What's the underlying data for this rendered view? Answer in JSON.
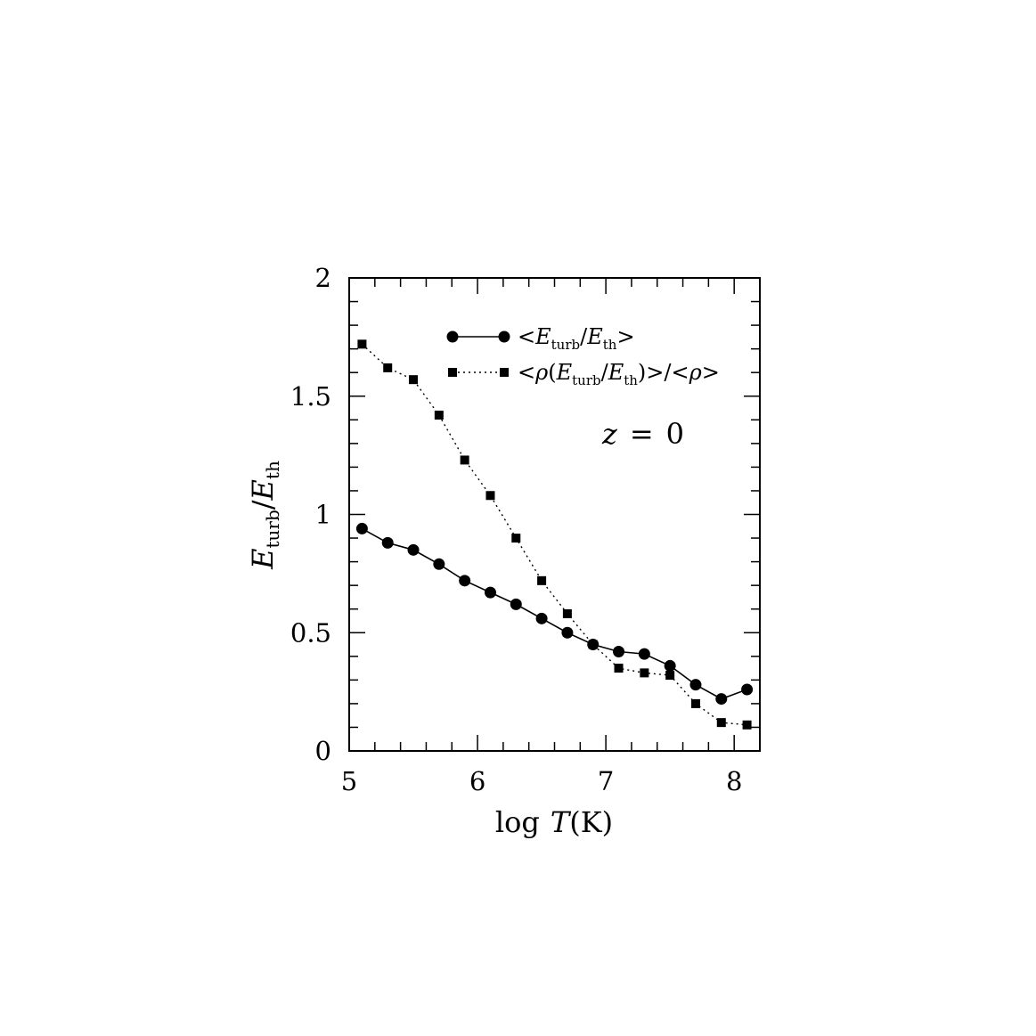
{
  "chart_data": {
    "type": "line",
    "xlabel": "log T(K)",
    "ylabel": "E_turb/E_th",
    "xlim": [
      5,
      8.2
    ],
    "ylim": [
      0,
      2
    ],
    "x_ticks": [
      "5",
      "6",
      "7",
      "8"
    ],
    "y_ticks": [
      "0",
      "0.5",
      "1",
      "1.5",
      "2"
    ],
    "annotation": "z = 0",
    "legend_position": "top-right",
    "series": [
      {
        "name": "<E_turb/E_th>",
        "marker": "circle",
        "line_style": "solid",
        "x": [
          5.1,
          5.3,
          5.5,
          5.7,
          5.9,
          6.1,
          6.3,
          6.5,
          6.7,
          6.9,
          7.1,
          7.3,
          7.5,
          7.7,
          7.9,
          8.1
        ],
        "y": [
          0.94,
          0.88,
          0.85,
          0.79,
          0.72,
          0.67,
          0.62,
          0.56,
          0.5,
          0.45,
          0.42,
          0.41,
          0.36,
          0.28,
          0.22,
          0.26
        ]
      },
      {
        "name": "<ρ(E_turb/E_th)>/<ρ>",
        "marker": "square",
        "line_style": "dotted",
        "x": [
          5.1,
          5.3,
          5.5,
          5.7,
          5.9,
          6.1,
          6.3,
          6.5,
          6.7,
          6.9,
          7.1,
          7.3,
          7.5,
          7.7,
          7.9,
          8.1
        ],
        "y": [
          1.72,
          1.62,
          1.57,
          1.42,
          1.23,
          1.08,
          0.9,
          0.72,
          0.58,
          0.45,
          0.35,
          0.33,
          0.32,
          0.2,
          0.12,
          0.11
        ]
      }
    ]
  },
  "legend": {
    "entry1": {
      "prefix": "<",
      "e1": "E",
      "sub1": "turb",
      "slash": "/",
      "e2": "E",
      "sub2": "th",
      "suffix": ">"
    },
    "entry2": {
      "prefix": "<",
      "rho1": "ρ",
      "open": "(",
      "e1": "E",
      "sub1": "turb",
      "slash": "/",
      "e2": "E",
      "sub2": "th",
      "close": ")>/<",
      "rho2": "ρ",
      "suffix": ">"
    }
  },
  "axis_titles": {
    "x": {
      "log": "log",
      "var": "T",
      "unit": "(K)"
    },
    "y": {
      "e1": "E",
      "sub1": "turb",
      "slash": "/",
      "e2": "E",
      "sub2": "th"
    }
  },
  "annotation_parts": {
    "var": "z",
    "eq": "=",
    "val": "0"
  }
}
